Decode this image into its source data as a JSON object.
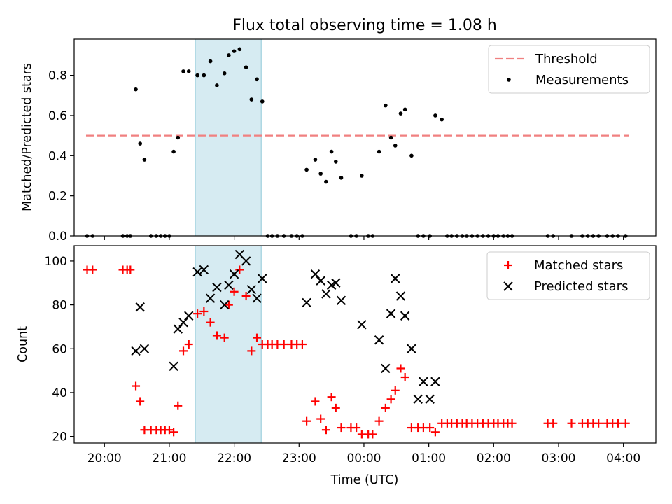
{
  "title": "Flux total observing time = 1.08 h",
  "chart_data": [
    {
      "type": "scatter",
      "ylabel": "Matched/Predicted stars",
      "xlabel": "",
      "xlim": [
        "19:32",
        "04:30"
      ],
      "ylim": [
        0,
        0.98
      ],
      "yticks": [
        "0.0",
        "0.2",
        "0.4",
        "0.6",
        "0.8"
      ],
      "grid": false,
      "legend_position": "top-right",
      "highlight_span": [
        "21:24",
        "22:25"
      ],
      "threshold": {
        "name": "Threshold",
        "value": 0.5,
        "x_range": [
          "19:43",
          "04:05"
        ],
        "color": "#f08080",
        "style": "dashed"
      },
      "series": [
        {
          "name": "Measurements",
          "color": "#000000",
          "x": [
            "19:44",
            "19:49",
            "20:17",
            "20:21",
            "20:24",
            "20:29",
            "20:33",
            "20:37",
            "20:43",
            "20:48",
            "20:52",
            "20:56",
            "21:00",
            "21:04",
            "21:08",
            "21:13",
            "21:18",
            "21:26",
            "21:32",
            "21:38",
            "21:44",
            "21:51",
            "21:55",
            "22:00",
            "22:05",
            "22:11",
            "22:16",
            "22:21",
            "22:26",
            "22:31",
            "22:35",
            "22:40",
            "22:46",
            "22:53",
            "22:58",
            "23:03",
            "23:07",
            "23:15",
            "23:20",
            "23:25",
            "23:30",
            "23:34",
            "23:39",
            "23:48",
            "23:53",
            "23:58",
            "00:04",
            "00:08",
            "00:14",
            "00:20",
            "00:25",
            "00:29",
            "00:34",
            "00:38",
            "00:44",
            "00:50",
            "00:55",
            "01:01",
            "01:06",
            "01:12",
            "01:17",
            "01:21",
            "01:26",
            "01:31",
            "01:35",
            "01:40",
            "01:45",
            "01:50",
            "01:55",
            "02:00",
            "02:04",
            "02:09",
            "02:13",
            "02:17",
            "02:50",
            "02:55",
            "03:12",
            "03:22",
            "03:27",
            "03:32",
            "03:37",
            "03:45",
            "03:50",
            "03:55",
            "04:02"
          ],
          "y": [
            0,
            0,
            0,
            0,
            0,
            0.73,
            0.46,
            0.38,
            0,
            0,
            0,
            0,
            0,
            0.42,
            0.49,
            0.82,
            0.82,
            0.8,
            0.8,
            0.87,
            0.75,
            0.81,
            0.9,
            0.92,
            0.93,
            0.84,
            0.68,
            0.78,
            0.67,
            0,
            0,
            0,
            0,
            0,
            0,
            0,
            0.33,
            0.38,
            0.31,
            0.27,
            0.42,
            0.37,
            0.29,
            0,
            0,
            0.3,
            0,
            0,
            0.42,
            0.65,
            0.49,
            0.45,
            0.61,
            0.63,
            0.4,
            0,
            0,
            0,
            0.6,
            0.58,
            0,
            0,
            0,
            0,
            0,
            0,
            0,
            0,
            0,
            0,
            0,
            0,
            0,
            0,
            0,
            0,
            0,
            0,
            0,
            0,
            0,
            0,
            0,
            0,
            0
          ]
        }
      ]
    },
    {
      "type": "scatter",
      "xlabel": "Time (UTC)",
      "ylabel": "Count",
      "xlim": [
        "19:32",
        "04:30"
      ],
      "ylim": [
        17,
        107
      ],
      "xticks": [
        "20:00",
        "21:00",
        "22:00",
        "23:00",
        "00:00",
        "01:00",
        "02:00",
        "03:00",
        "04:00"
      ],
      "yticks": [
        "20",
        "40",
        "60",
        "80",
        "100"
      ],
      "grid": false,
      "legend_position": "top-right",
      "highlight_span": [
        "21:24",
        "22:25"
      ],
      "series": [
        {
          "name": "Matched stars",
          "color": "#ff0000",
          "marker": "plus",
          "x": [
            "19:44",
            "19:49",
            "20:17",
            "20:21",
            "20:24",
            "20:29",
            "20:33",
            "20:37",
            "20:43",
            "20:48",
            "20:52",
            "20:56",
            "21:00",
            "21:04",
            "21:08",
            "21:13",
            "21:18",
            "21:26",
            "21:32",
            "21:38",
            "21:44",
            "21:51",
            "21:55",
            "22:00",
            "22:05",
            "22:11",
            "22:16",
            "22:21",
            "22:26",
            "22:31",
            "22:35",
            "22:40",
            "22:46",
            "22:53",
            "22:58",
            "23:03",
            "23:07",
            "23:15",
            "23:20",
            "23:25",
            "23:30",
            "23:34",
            "23:39",
            "23:48",
            "23:53",
            "23:58",
            "00:04",
            "00:08",
            "00:14",
            "00:20",
            "00:25",
            "00:29",
            "00:34",
            "00:38",
            "00:44",
            "00:50",
            "00:55",
            "01:01",
            "01:06",
            "01:12",
            "01:17",
            "01:21",
            "01:26",
            "01:31",
            "01:35",
            "01:40",
            "01:45",
            "01:50",
            "01:55",
            "02:00",
            "02:04",
            "02:09",
            "02:13",
            "02:17",
            "02:50",
            "02:55",
            "03:12",
            "03:22",
            "03:27",
            "03:32",
            "03:37",
            "03:45",
            "03:50",
            "03:55",
            "04:02"
          ],
          "y": [
            96,
            96,
            96,
            96,
            96,
            43,
            36,
            23,
            23,
            23,
            23,
            23,
            23,
            22,
            34,
            59,
            62,
            76,
            77,
            72,
            66,
            65,
            80,
            86,
            96,
            84,
            59,
            65,
            62,
            62,
            62,
            62,
            62,
            62,
            62,
            62,
            27,
            36,
            28,
            23,
            38,
            33,
            24,
            24,
            24,
            21,
            21,
            21,
            27,
            33,
            37,
            41,
            51,
            47,
            24,
            24,
            24,
            24,
            22,
            26,
            26,
            26,
            26,
            26,
            26,
            26,
            26,
            26,
            26,
            26,
            26,
            26,
            26,
            26,
            26,
            26,
            26,
            26,
            26,
            26,
            26,
            26,
            26,
            26,
            26
          ]
        },
        {
          "name": "Predicted stars",
          "color": "#000000",
          "marker": "x",
          "x": [
            "20:29",
            "20:33",
            "20:37",
            "21:04",
            "21:08",
            "21:13",
            "21:18",
            "21:26",
            "21:32",
            "21:38",
            "21:44",
            "21:51",
            "21:55",
            "22:00",
            "22:05",
            "22:11",
            "22:16",
            "22:21",
            "22:26",
            "23:07",
            "23:15",
            "23:20",
            "23:25",
            "23:30",
            "23:34",
            "23:39",
            "23:58",
            "00:14",
            "00:20",
            "00:25",
            "00:29",
            "00:34",
            "00:38",
            "00:44",
            "00:50",
            "00:55",
            "01:01",
            "01:06"
          ],
          "y": [
            59,
            79,
            60,
            52,
            69,
            72,
            75,
            95,
            96,
            83,
            88,
            80,
            89,
            94,
            103,
            100,
            87,
            83,
            92,
            81,
            94,
            91,
            85,
            89,
            90,
            82,
            71,
            64,
            51,
            76,
            92,
            84,
            75,
            60,
            37,
            45,
            37,
            45
          ]
        }
      ]
    }
  ]
}
